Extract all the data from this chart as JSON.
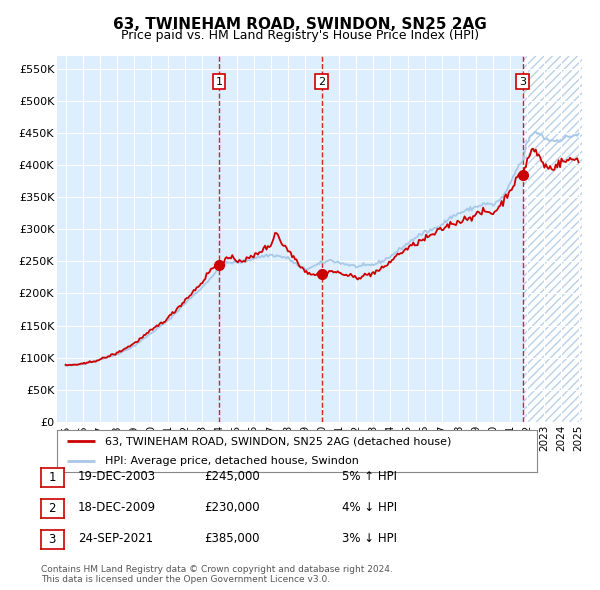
{
  "title": "63, TWINEHAM ROAD, SWINDON, SN25 2AG",
  "subtitle": "Price paid vs. HM Land Registry's House Price Index (HPI)",
  "legend_line1": "63, TWINEHAM ROAD, SWINDON, SN25 2AG (detached house)",
  "legend_line2": "HPI: Average price, detached house, Swindon",
  "footnote1": "Contains HM Land Registry data © Crown copyright and database right 2024.",
  "footnote2": "This data is licensed under the Open Government Licence v3.0.",
  "transactions": [
    {
      "num": 1,
      "date": "19-DEC-2003",
      "price": 245000,
      "pct": "5%",
      "dir": "↑"
    },
    {
      "num": 2,
      "date": "18-DEC-2009",
      "price": 230000,
      "pct": "4%",
      "dir": "↓"
    },
    {
      "num": 3,
      "date": "24-SEP-2021",
      "price": 385000,
      "pct": "3%",
      "dir": "↓"
    }
  ],
  "transaction_dates_num": [
    2003.97,
    2009.97,
    2021.73
  ],
  "transaction_prices": [
    245000,
    230000,
    385000
  ],
  "ylim": [
    0,
    570000
  ],
  "yticks": [
    0,
    50000,
    100000,
    150000,
    200000,
    250000,
    300000,
    350000,
    400000,
    450000,
    500000,
    550000
  ],
  "ytick_labels": [
    "£0",
    "£50K",
    "£100K",
    "£150K",
    "£200K",
    "£250K",
    "£300K",
    "£350K",
    "£400K",
    "£450K",
    "£500K",
    "£550K"
  ],
  "hpi_color": "#a8c8e8",
  "price_color": "#cc0000",
  "marker_color": "#cc0000",
  "bg_color": "#ddeeff",
  "hatch_color": "#b8d0e8",
  "grid_color": "#ffffff",
  "vline_color": "#cc0000",
  "box_color": "#cc0000",
  "xlim_start": 1994.5,
  "xlim_end": 2025.2,
  "hatch_start": 2021.73
}
